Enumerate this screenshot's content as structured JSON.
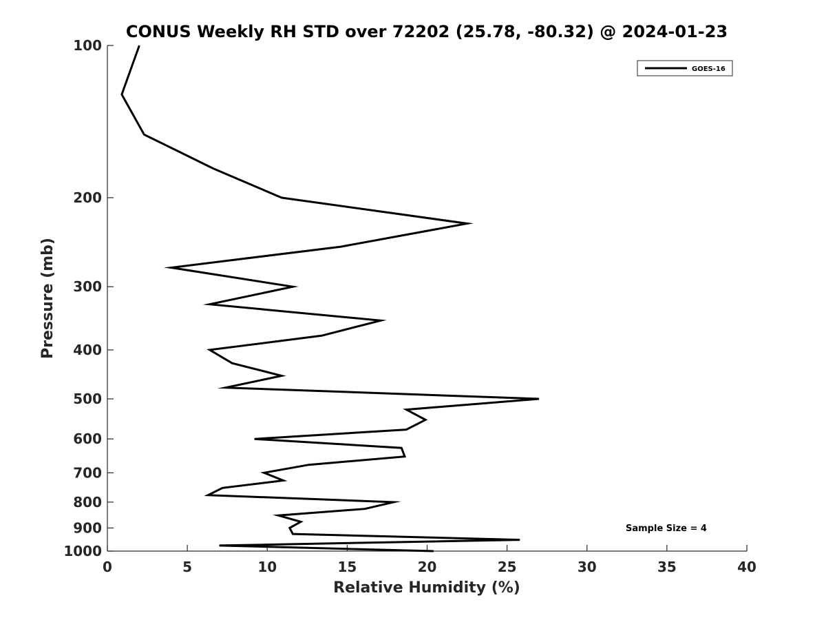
{
  "chart_data": {
    "type": "line",
    "title": "CONUS Weekly RH STD over 72202 (25.78, -80.32) @ 2024-01-23",
    "xlabel": "Relative Humidity (%)",
    "ylabel": "Pressure (mb)",
    "xlim": [
      0,
      40
    ],
    "ylim": [
      100,
      1000
    ],
    "yscale": "log-reversed",
    "x_ticks": [
      0,
      5,
      10,
      15,
      20,
      25,
      30,
      35,
      40
    ],
    "x_tick_labels": [
      "0",
      "5",
      "10",
      "15",
      "20",
      "25",
      "30",
      "35",
      "40"
    ],
    "y_ticks": [
      100,
      200,
      300,
      400,
      500,
      600,
      700,
      800,
      900,
      1000
    ],
    "y_tick_labels": [
      "100",
      "200",
      "300",
      "400",
      "500",
      "600",
      "700",
      "800",
      "900",
      "1000"
    ],
    "legend": {
      "location": "top-right",
      "entries": [
        "GOES-16"
      ]
    },
    "annotation": "Sample Size = 4",
    "series": [
      {
        "name": "GOES-16",
        "color": "#000000",
        "points": [
          {
            "x": 2.0,
            "p": 100
          },
          {
            "x": 0.9,
            "p": 125
          },
          {
            "x": 2.3,
            "p": 150
          },
          {
            "x": 6.6,
            "p": 175
          },
          {
            "x": 10.9,
            "p": 200
          },
          {
            "x": 22.5,
            "p": 225
          },
          {
            "x": 14.6,
            "p": 250
          },
          {
            "x": 4.0,
            "p": 275
          },
          {
            "x": 11.6,
            "p": 300
          },
          {
            "x": 6.4,
            "p": 325
          },
          {
            "x": 17.1,
            "p": 350
          },
          {
            "x": 13.4,
            "p": 375
          },
          {
            "x": 6.4,
            "p": 400
          },
          {
            "x": 7.8,
            "p": 425
          },
          {
            "x": 10.9,
            "p": 450
          },
          {
            "x": 7.4,
            "p": 475
          },
          {
            "x": 27.0,
            "p": 500
          },
          {
            "x": 18.7,
            "p": 525
          },
          {
            "x": 19.9,
            "p": 550
          },
          {
            "x": 18.7,
            "p": 575
          },
          {
            "x": 9.2,
            "p": 600
          },
          {
            "x": 18.4,
            "p": 625
          },
          {
            "x": 18.6,
            "p": 650
          },
          {
            "x": 12.6,
            "p": 675
          },
          {
            "x": 9.8,
            "p": 700
          },
          {
            "x": 11.0,
            "p": 725
          },
          {
            "x": 7.2,
            "p": 750
          },
          {
            "x": 6.3,
            "p": 775
          },
          {
            "x": 17.9,
            "p": 800
          },
          {
            "x": 16.1,
            "p": 825
          },
          {
            "x": 10.7,
            "p": 850
          },
          {
            "x": 12.1,
            "p": 875
          },
          {
            "x": 11.4,
            "p": 900
          },
          {
            "x": 11.6,
            "p": 925
          },
          {
            "x": 25.8,
            "p": 950
          },
          {
            "x": 7.0,
            "p": 975
          },
          {
            "x": 20.4,
            "p": 1000
          }
        ]
      }
    ]
  }
}
